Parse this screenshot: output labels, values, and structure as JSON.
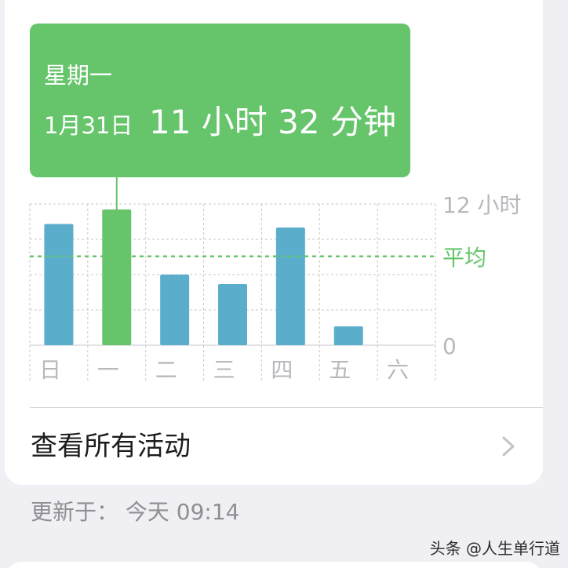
{
  "chart_data": {
    "type": "bar",
    "categories": [
      "日",
      "一",
      "二",
      "三",
      "四",
      "五",
      "六"
    ],
    "values": [
      10.3,
      11.53,
      6.0,
      5.2,
      10.0,
      1.6,
      0
    ],
    "ylim": [
      0,
      12
    ],
    "y_ticks": [
      {
        "value": 12,
        "label": "12 小时"
      },
      {
        "value": 0,
        "label": "0"
      }
    ],
    "average": {
      "value": 7.55,
      "label": "平均"
    },
    "highlighted_index": 1,
    "grid": true,
    "colors": {
      "bar": "#5baecb",
      "highlight": "#66c56b",
      "average": "#66c56b",
      "grid": "#c7c7cc",
      "axis_text": "#b8b8bd"
    }
  },
  "tooltip": {
    "weekday": "星期一",
    "date": "1月31日",
    "value": "11 小时 32 分钟"
  },
  "see_all": {
    "label": "查看所有活动",
    "chevron_icon": "chevron-right-icon"
  },
  "updated_text": "更新于：  今天 09:14",
  "watermark": "头条 @人生单行道"
}
